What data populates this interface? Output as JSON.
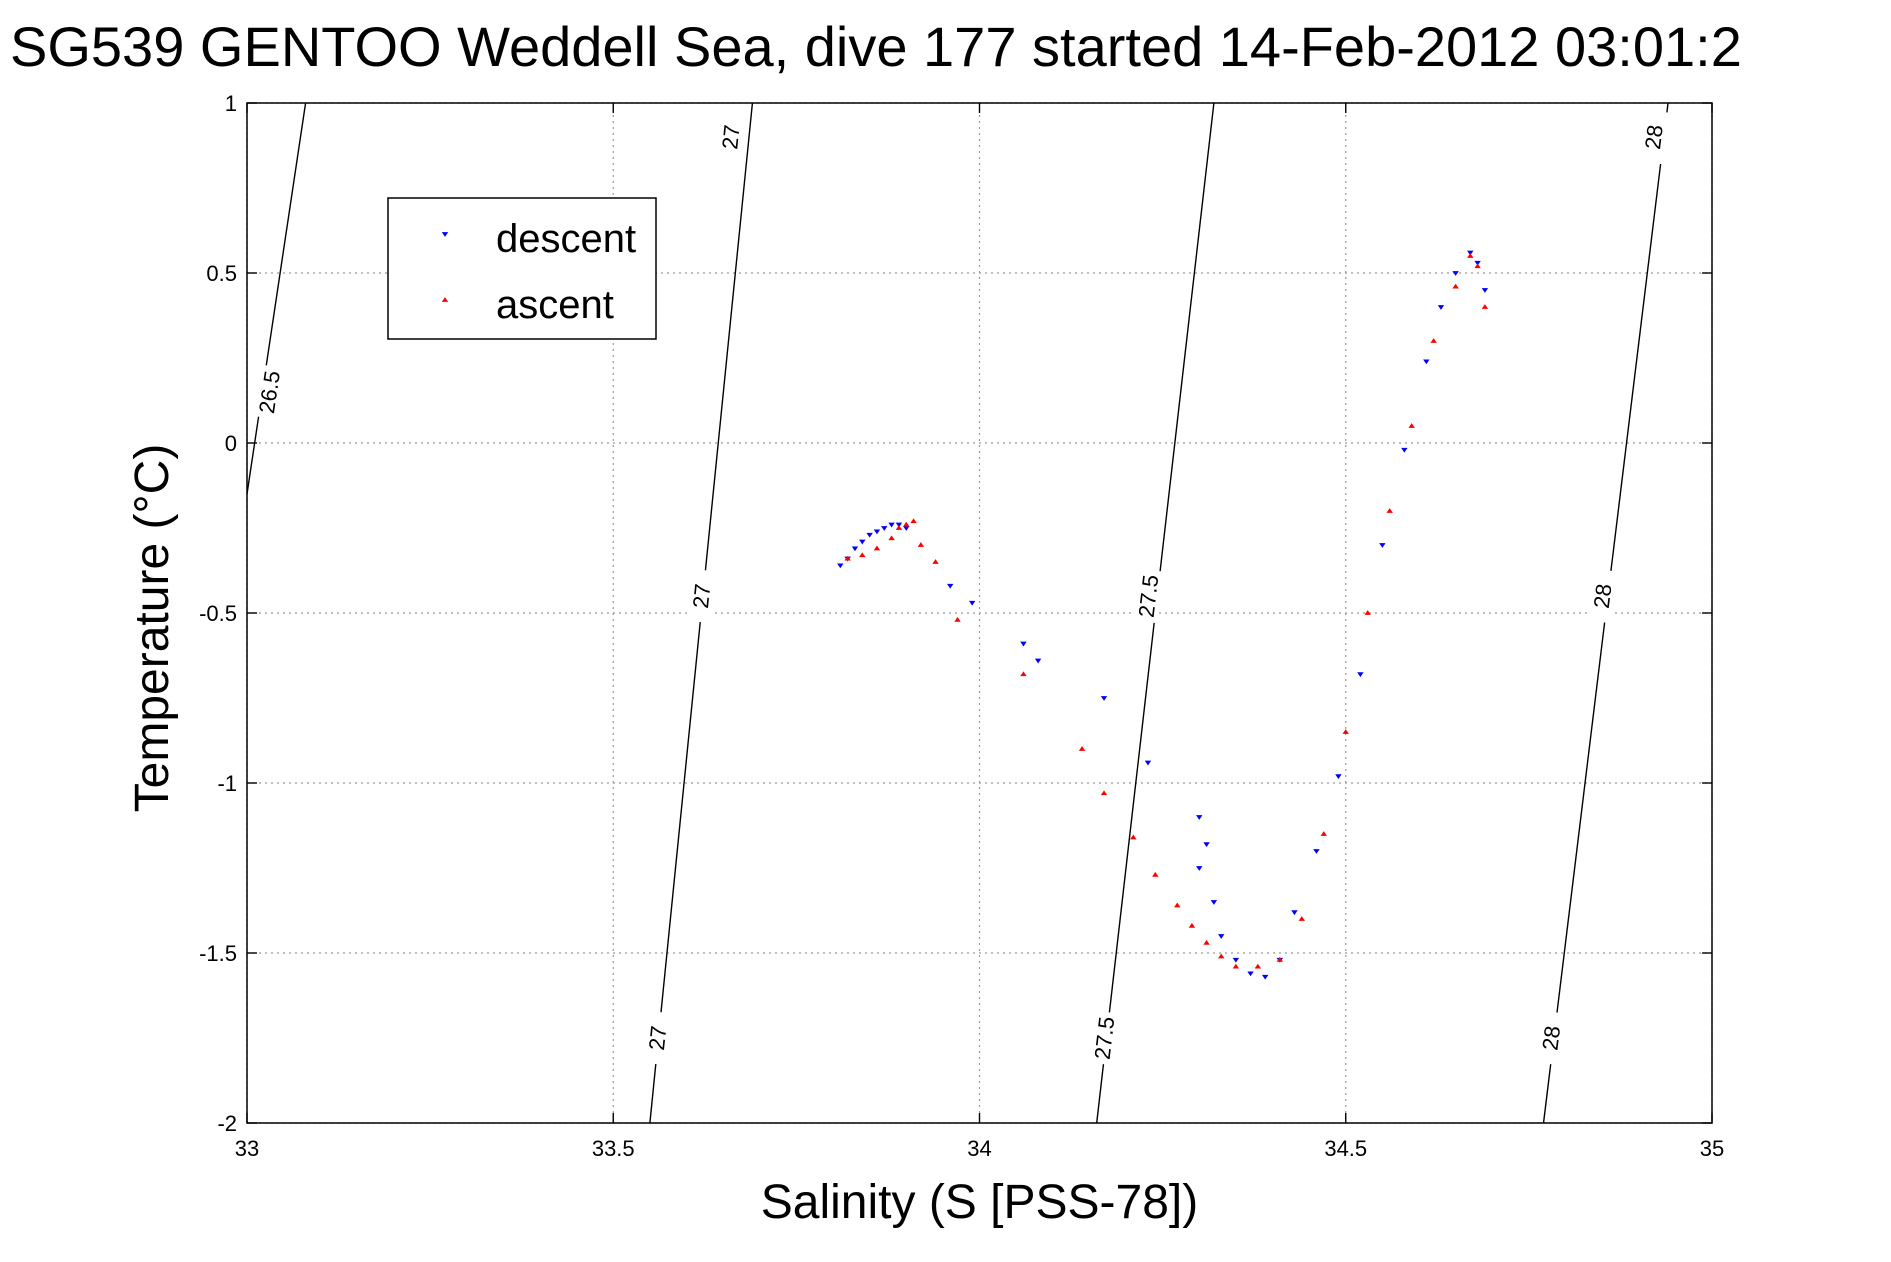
{
  "chart_data": {
    "type": "scatter",
    "title": "SG539 GENTOO Weddell Sea, dive 177 started 14-Feb-2012 03:01:2",
    "xlabel": "Salinity (S [PSS-78])",
    "ylabel": "Temperature (°C)",
    "xlim": [
      33,
      35
    ],
    "ylim": [
      -2,
      1
    ],
    "xticks": [
      33,
      33.5,
      34,
      34.5,
      35
    ],
    "xtick_labels": [
      "33",
      "33.5",
      "34",
      "34.5",
      "35"
    ],
    "yticks": [
      -2,
      -1.5,
      -1,
      -0.5,
      0,
      0.5,
      1
    ],
    "ytick_labels": [
      "-2",
      "-1.5",
      "-1",
      "-0.5",
      "0",
      "0.5",
      "1"
    ],
    "grid": true,
    "legend_position": "upper-left",
    "density_contours": [
      {
        "label": "26.5",
        "x": [
          33.0,
          33.08
        ],
        "y": [
          -0.15,
          1.0
        ],
        "label_points": [
          {
            "x": 33.03,
            "y": 0.15
          }
        ]
      },
      {
        "label": "27",
        "x": [
          33.55,
          33.69
        ],
        "y": [
          -2.0,
          1.0
        ],
        "label_points": [
          {
            "x": 33.56,
            "y": -1.75
          },
          {
            "x": 33.62,
            "y": -0.45
          },
          {
            "x": 33.66,
            "y": 0.9
          }
        ]
      },
      {
        "label": "27.5",
        "x": [
          34.16,
          34.32
        ],
        "y": [
          -2.0,
          1.0
        ],
        "label_points": [
          {
            "x": 34.17,
            "y": -1.75
          },
          {
            "x": 34.23,
            "y": -0.45
          }
        ]
      },
      {
        "label": "28",
        "x": [
          34.77,
          34.94
        ],
        "y": [
          -2.0,
          1.0
        ],
        "label_points": [
          {
            "x": 34.78,
            "y": -1.75
          },
          {
            "x": 34.85,
            "y": -0.45
          },
          {
            "x": 34.92,
            "y": 0.9
          }
        ]
      }
    ],
    "series": [
      {
        "name": "descent",
        "color": "#0000ff",
        "marker": "triangle-down",
        "x": [
          33.81,
          33.82,
          33.83,
          33.84,
          33.85,
          33.86,
          33.87,
          33.88,
          33.89,
          33.9,
          33.96,
          33.99,
          34.06,
          34.08,
          34.17,
          34.23,
          34.3,
          34.3,
          34.31,
          34.32,
          34.33,
          34.35,
          34.37,
          34.39,
          34.41,
          34.43,
          34.46,
          34.49,
          34.52,
          34.55,
          34.58,
          34.61,
          34.63,
          34.65,
          34.67,
          34.68,
          34.69
        ],
        "y": [
          -0.36,
          -0.34,
          -0.31,
          -0.29,
          -0.27,
          -0.26,
          -0.25,
          -0.24,
          -0.24,
          -0.25,
          -0.42,
          -0.47,
          -0.59,
          -0.64,
          -0.75,
          -0.94,
          -1.1,
          -1.25,
          -1.18,
          -1.35,
          -1.45,
          -1.52,
          -1.56,
          -1.57,
          -1.52,
          -1.38,
          -1.2,
          -0.98,
          -0.68,
          -0.3,
          -0.02,
          0.24,
          0.4,
          0.5,
          0.56,
          0.53,
          0.45
        ]
      },
      {
        "name": "ascent",
        "color": "#ff0000",
        "marker": "triangle-up",
        "x": [
          33.82,
          33.84,
          33.86,
          33.88,
          33.89,
          33.9,
          33.91,
          33.92,
          33.94,
          33.97,
          34.06,
          34.14,
          34.17,
          34.21,
          34.24,
          34.27,
          34.29,
          34.31,
          34.33,
          34.35,
          34.38,
          34.41,
          34.44,
          34.47,
          34.5,
          34.53,
          34.56,
          34.59,
          34.62,
          34.65,
          34.67,
          34.68,
          34.69
        ],
        "y": [
          -0.34,
          -0.33,
          -0.31,
          -0.28,
          -0.25,
          -0.24,
          -0.23,
          -0.3,
          -0.35,
          -0.52,
          -0.68,
          -0.9,
          -1.03,
          -1.16,
          -1.27,
          -1.36,
          -1.42,
          -1.47,
          -1.51,
          -1.54,
          -1.54,
          -1.52,
          -1.4,
          -1.15,
          -0.85,
          -0.5,
          -0.2,
          0.05,
          0.3,
          0.46,
          0.55,
          0.52,
          0.4
        ]
      }
    ]
  }
}
